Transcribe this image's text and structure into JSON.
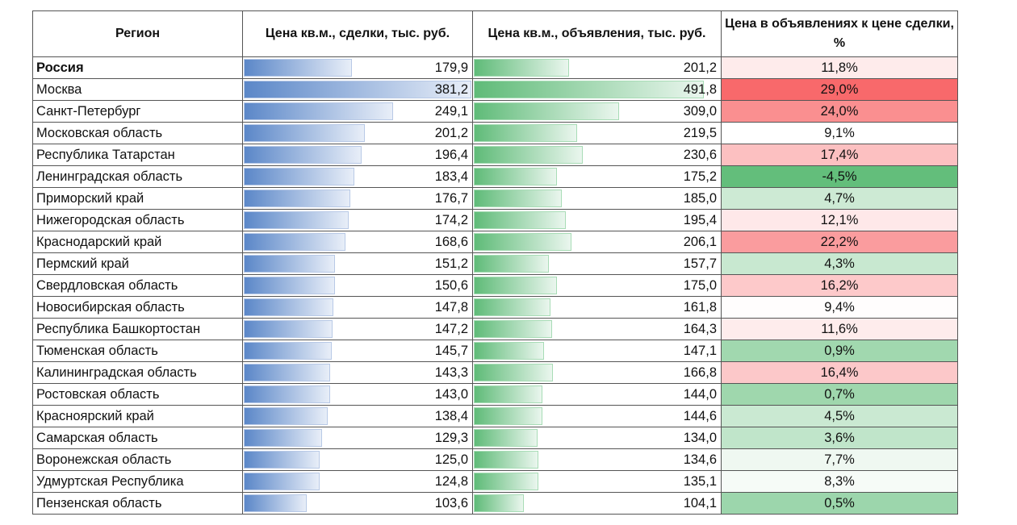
{
  "chart_data": {
    "type": "table",
    "columns": [
      "Регион",
      "Цена кв.м., сделки, тыс. руб.",
      "Цена кв.м., объявления, тыс. руб.",
      "Цена в объявлениях к цене сделки, %"
    ],
    "rows": [
      {
        "region": "Россия",
        "deal": "179,9",
        "ads": "201,2",
        "ratio": "11,8%",
        "bold": true
      },
      {
        "region": "Москва",
        "deal": "381,2",
        "ads": "491,8",
        "ratio": "29,0%"
      },
      {
        "region": "Санкт-Петербург",
        "deal": "249,1",
        "ads": "309,0",
        "ratio": "24,0%"
      },
      {
        "region": "Московская область",
        "deal": "201,2",
        "ads": "219,5",
        "ratio": "9,1%"
      },
      {
        "region": "Республика Татарстан",
        "deal": "196,4",
        "ads": "230,6",
        "ratio": "17,4%"
      },
      {
        "region": "Ленинградская область",
        "deal": "183,4",
        "ads": "175,2",
        "ratio": "-4,5%"
      },
      {
        "region": "Приморский край",
        "deal": "176,7",
        "ads": "185,0",
        "ratio": "4,7%"
      },
      {
        "region": "Нижегородская область",
        "deal": "174,2",
        "ads": "195,4",
        "ratio": "12,1%"
      },
      {
        "region": "Краснодарский край",
        "deal": "168,6",
        "ads": "206,1",
        "ratio": "22,2%"
      },
      {
        "region": "Пермский край",
        "deal": "151,2",
        "ads": "157,7",
        "ratio": "4,3%"
      },
      {
        "region": "Свердловская область",
        "deal": "150,6",
        "ads": "175,0",
        "ratio": "16,2%"
      },
      {
        "region": "Новосибирская область",
        "deal": "147,8",
        "ads": "161,8",
        "ratio": "9,4%"
      },
      {
        "region": "Республика Башкортостан",
        "deal": "147,2",
        "ads": "164,3",
        "ratio": "11,6%"
      },
      {
        "region": "Тюменская область",
        "deal": "145,7",
        "ads": "147,1",
        "ratio": "0,9%"
      },
      {
        "region": "Калининградская область",
        "deal": "143,3",
        "ads": "166,8",
        "ratio": "16,4%"
      },
      {
        "region": "Ростовская область",
        "deal": "143,0",
        "ads": "144,0",
        "ratio": "0,7%"
      },
      {
        "region": "Красноярский край",
        "deal": "138,4",
        "ads": "144,6",
        "ratio": "4,5%"
      },
      {
        "region": "Самарская область",
        "deal": "129,3",
        "ads": "134,0",
        "ratio": "3,6%"
      },
      {
        "region": "Воронежская область",
        "deal": "125,0",
        "ads": "134,6",
        "ratio": "7,7%"
      },
      {
        "region": "Удмуртская Республика",
        "deal": "124,8",
        "ads": "135,1",
        "ratio": "8,3%"
      },
      {
        "region": "Пензенская область",
        "deal": "103,6",
        "ads": "104,1",
        "ratio": "0,5%"
      }
    ],
    "colors": {
      "deal_bar": "#5b87c8",
      "ads_bar": "#5fbb78",
      "scale_min": "#63be7b",
      "scale_mid": "#ffffff",
      "scale_max": "#f8696b"
    }
  }
}
